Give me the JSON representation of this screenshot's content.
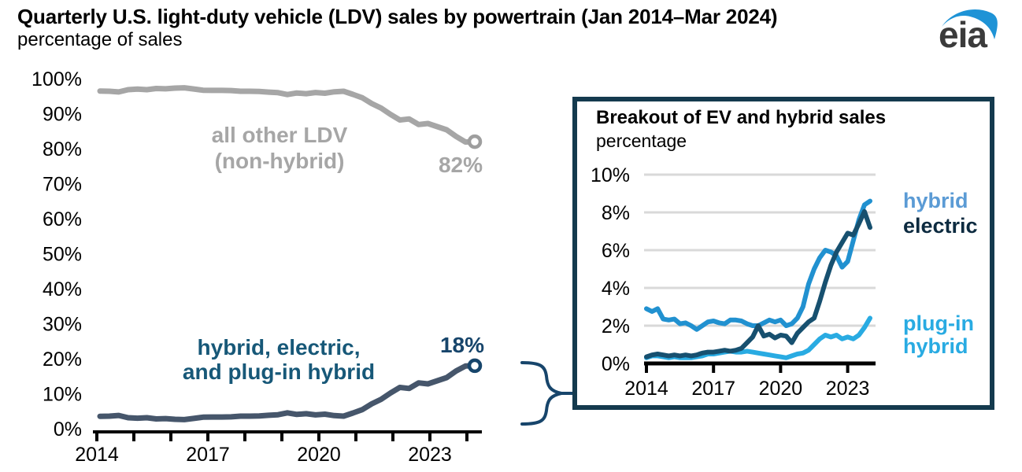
{
  "header": {
    "title": "Quarterly U.S. light-duty vehicle (LDV) sales by powertrain (Jan 2014–Mar 2024)",
    "subtitle": "percentage of sales",
    "logo_text": "eia"
  },
  "colors": {
    "gray_series": "#a6a6a6",
    "gray_text": "#a6a6a6",
    "navy_series_line": "#46566b",
    "navy_text": "#175878",
    "navy_value_text": "#17456b",
    "inset_border": "#143a4e",
    "hybrid_line": "#2191d0",
    "hybrid_label": "#5b9bd5",
    "electric_line": "#17506f",
    "electric_label": "#0d2b40",
    "plugin_line": "#29abe2",
    "gridline": "#d9d9d9",
    "axis": "#000000",
    "logo_text_color": "#3b3b3b",
    "logo_swoosh": "#1e93d6"
  },
  "chart_data": [
    {
      "id": "main",
      "type": "line",
      "title": "Quarterly U.S. light-duty vehicle (LDV) sales by powertrain (Jan 2014–Mar 2024)",
      "ylabel": "percentage of sales",
      "ylim": [
        0,
        100
      ],
      "x_axis": {
        "start_year": 2014,
        "end_year": 2024,
        "unit": "quarter",
        "labeled_years": [
          "2014",
          "2017",
          "2020",
          "2023"
        ]
      },
      "y_tick_labels": [
        "100%",
        "90%",
        "80%",
        "70%",
        "60%",
        "50%",
        "40%",
        "30%",
        "20%",
        "10%",
        "0%"
      ],
      "grid": false,
      "series": [
        {
          "name": "all other LDV (non-hybrid)",
          "label_lines": [
            "all other LDV",
            "(non-hybrid)"
          ],
          "end_label": "82%",
          "color": "#a6a6a6",
          "marker_color": "#9e9e9e",
          "values": [
            96.45,
            96.4,
            96.2,
            96.85,
            97.0,
            96.85,
            97.2,
            97.1,
            97.3,
            97.4,
            97.05,
            96.7,
            96.65,
            96.65,
            96.6,
            96.4,
            96.4,
            96.35,
            96.15,
            96.0,
            95.45,
            95.9,
            95.7,
            96.05,
            95.85,
            96.25,
            96.4,
            95.5,
            94.55,
            92.9,
            91.6,
            89.8,
            88.2,
            88.5,
            86.9,
            87.2,
            86.3,
            85.4,
            83.5,
            81.9,
            82.0
          ]
        },
        {
          "name": "hybrid, electric, and plug-in hybrid",
          "label_lines": [
            "hybrid, electric,",
            "and plug-in hybrid"
          ],
          "end_label": "18%",
          "color": "#46566b",
          "marker_color": "#17456b",
          "values": [
            3.55,
            3.6,
            3.8,
            3.15,
            3.0,
            3.15,
            2.8,
            2.9,
            2.7,
            2.6,
            2.95,
            3.3,
            3.35,
            3.35,
            3.4,
            3.6,
            3.6,
            3.65,
            3.85,
            4.0,
            4.55,
            4.1,
            4.3,
            3.95,
            4.15,
            3.75,
            3.6,
            4.5,
            5.45,
            7.1,
            8.4,
            10.2,
            11.8,
            11.5,
            13.1,
            12.8,
            13.7,
            14.6,
            16.5,
            17.9,
            18.0
          ]
        }
      ]
    },
    {
      "id": "inset",
      "type": "line",
      "title": "Breakout of EV and hybrid sales",
      "subtitle": "percentage",
      "ylim": [
        0,
        10
      ],
      "x_axis": {
        "start_year": 2014,
        "end_year": 2024,
        "unit": "quarter",
        "labeled_years": [
          "2014",
          "2017",
          "2020",
          "2023"
        ]
      },
      "y_tick_labels": [
        "10%",
        "8%",
        "6%",
        "4%",
        "2%",
        "0%"
      ],
      "grid": true,
      "series": [
        {
          "name": "hybrid",
          "label_lines": [
            "hybrid"
          ],
          "color": "#2191d0",
          "label_color": "#5b9bd5",
          "values": [
            2.9,
            2.75,
            2.9,
            2.35,
            2.3,
            2.35,
            2.1,
            2.15,
            2.0,
            1.8,
            2.0,
            2.2,
            2.25,
            2.15,
            2.1,
            2.3,
            2.3,
            2.25,
            2.1,
            2.0,
            2.0,
            2.15,
            2.3,
            2.2,
            2.3,
            2.0,
            2.1,
            2.4,
            3.0,
            4.2,
            5.0,
            5.6,
            6.0,
            5.9,
            5.7,
            5.1,
            5.4,
            6.5,
            7.6,
            8.4,
            8.6
          ]
        },
        {
          "name": "electric",
          "label_lines": [
            "electric"
          ],
          "color": "#17506f",
          "label_color": "#0d2b40",
          "values": [
            0.35,
            0.45,
            0.5,
            0.45,
            0.4,
            0.45,
            0.4,
            0.45,
            0.4,
            0.45,
            0.55,
            0.6,
            0.6,
            0.65,
            0.7,
            0.65,
            0.7,
            0.8,
            1.1,
            1.4,
            2.0,
            1.45,
            1.55,
            1.35,
            1.5,
            1.45,
            1.1,
            1.6,
            1.9,
            2.2,
            2.4,
            3.3,
            4.3,
            5.2,
            5.9,
            6.4,
            6.9,
            6.8,
            7.4,
            8.05,
            7.2
          ]
        },
        {
          "name": "plug-in hybrid",
          "label_lines": [
            "plug-in",
            "hybrid"
          ],
          "color": "#29abe2",
          "label_color": "#29abe2",
          "values": [
            0.3,
            0.4,
            0.4,
            0.35,
            0.3,
            0.35,
            0.3,
            0.3,
            0.3,
            0.35,
            0.4,
            0.5,
            0.5,
            0.55,
            0.6,
            0.65,
            0.6,
            0.6,
            0.65,
            0.6,
            0.55,
            0.5,
            0.45,
            0.4,
            0.35,
            0.3,
            0.4,
            0.5,
            0.55,
            0.7,
            1.0,
            1.3,
            1.5,
            1.4,
            1.5,
            1.3,
            1.4,
            1.3,
            1.5,
            1.9,
            2.4
          ]
        }
      ]
    }
  ]
}
